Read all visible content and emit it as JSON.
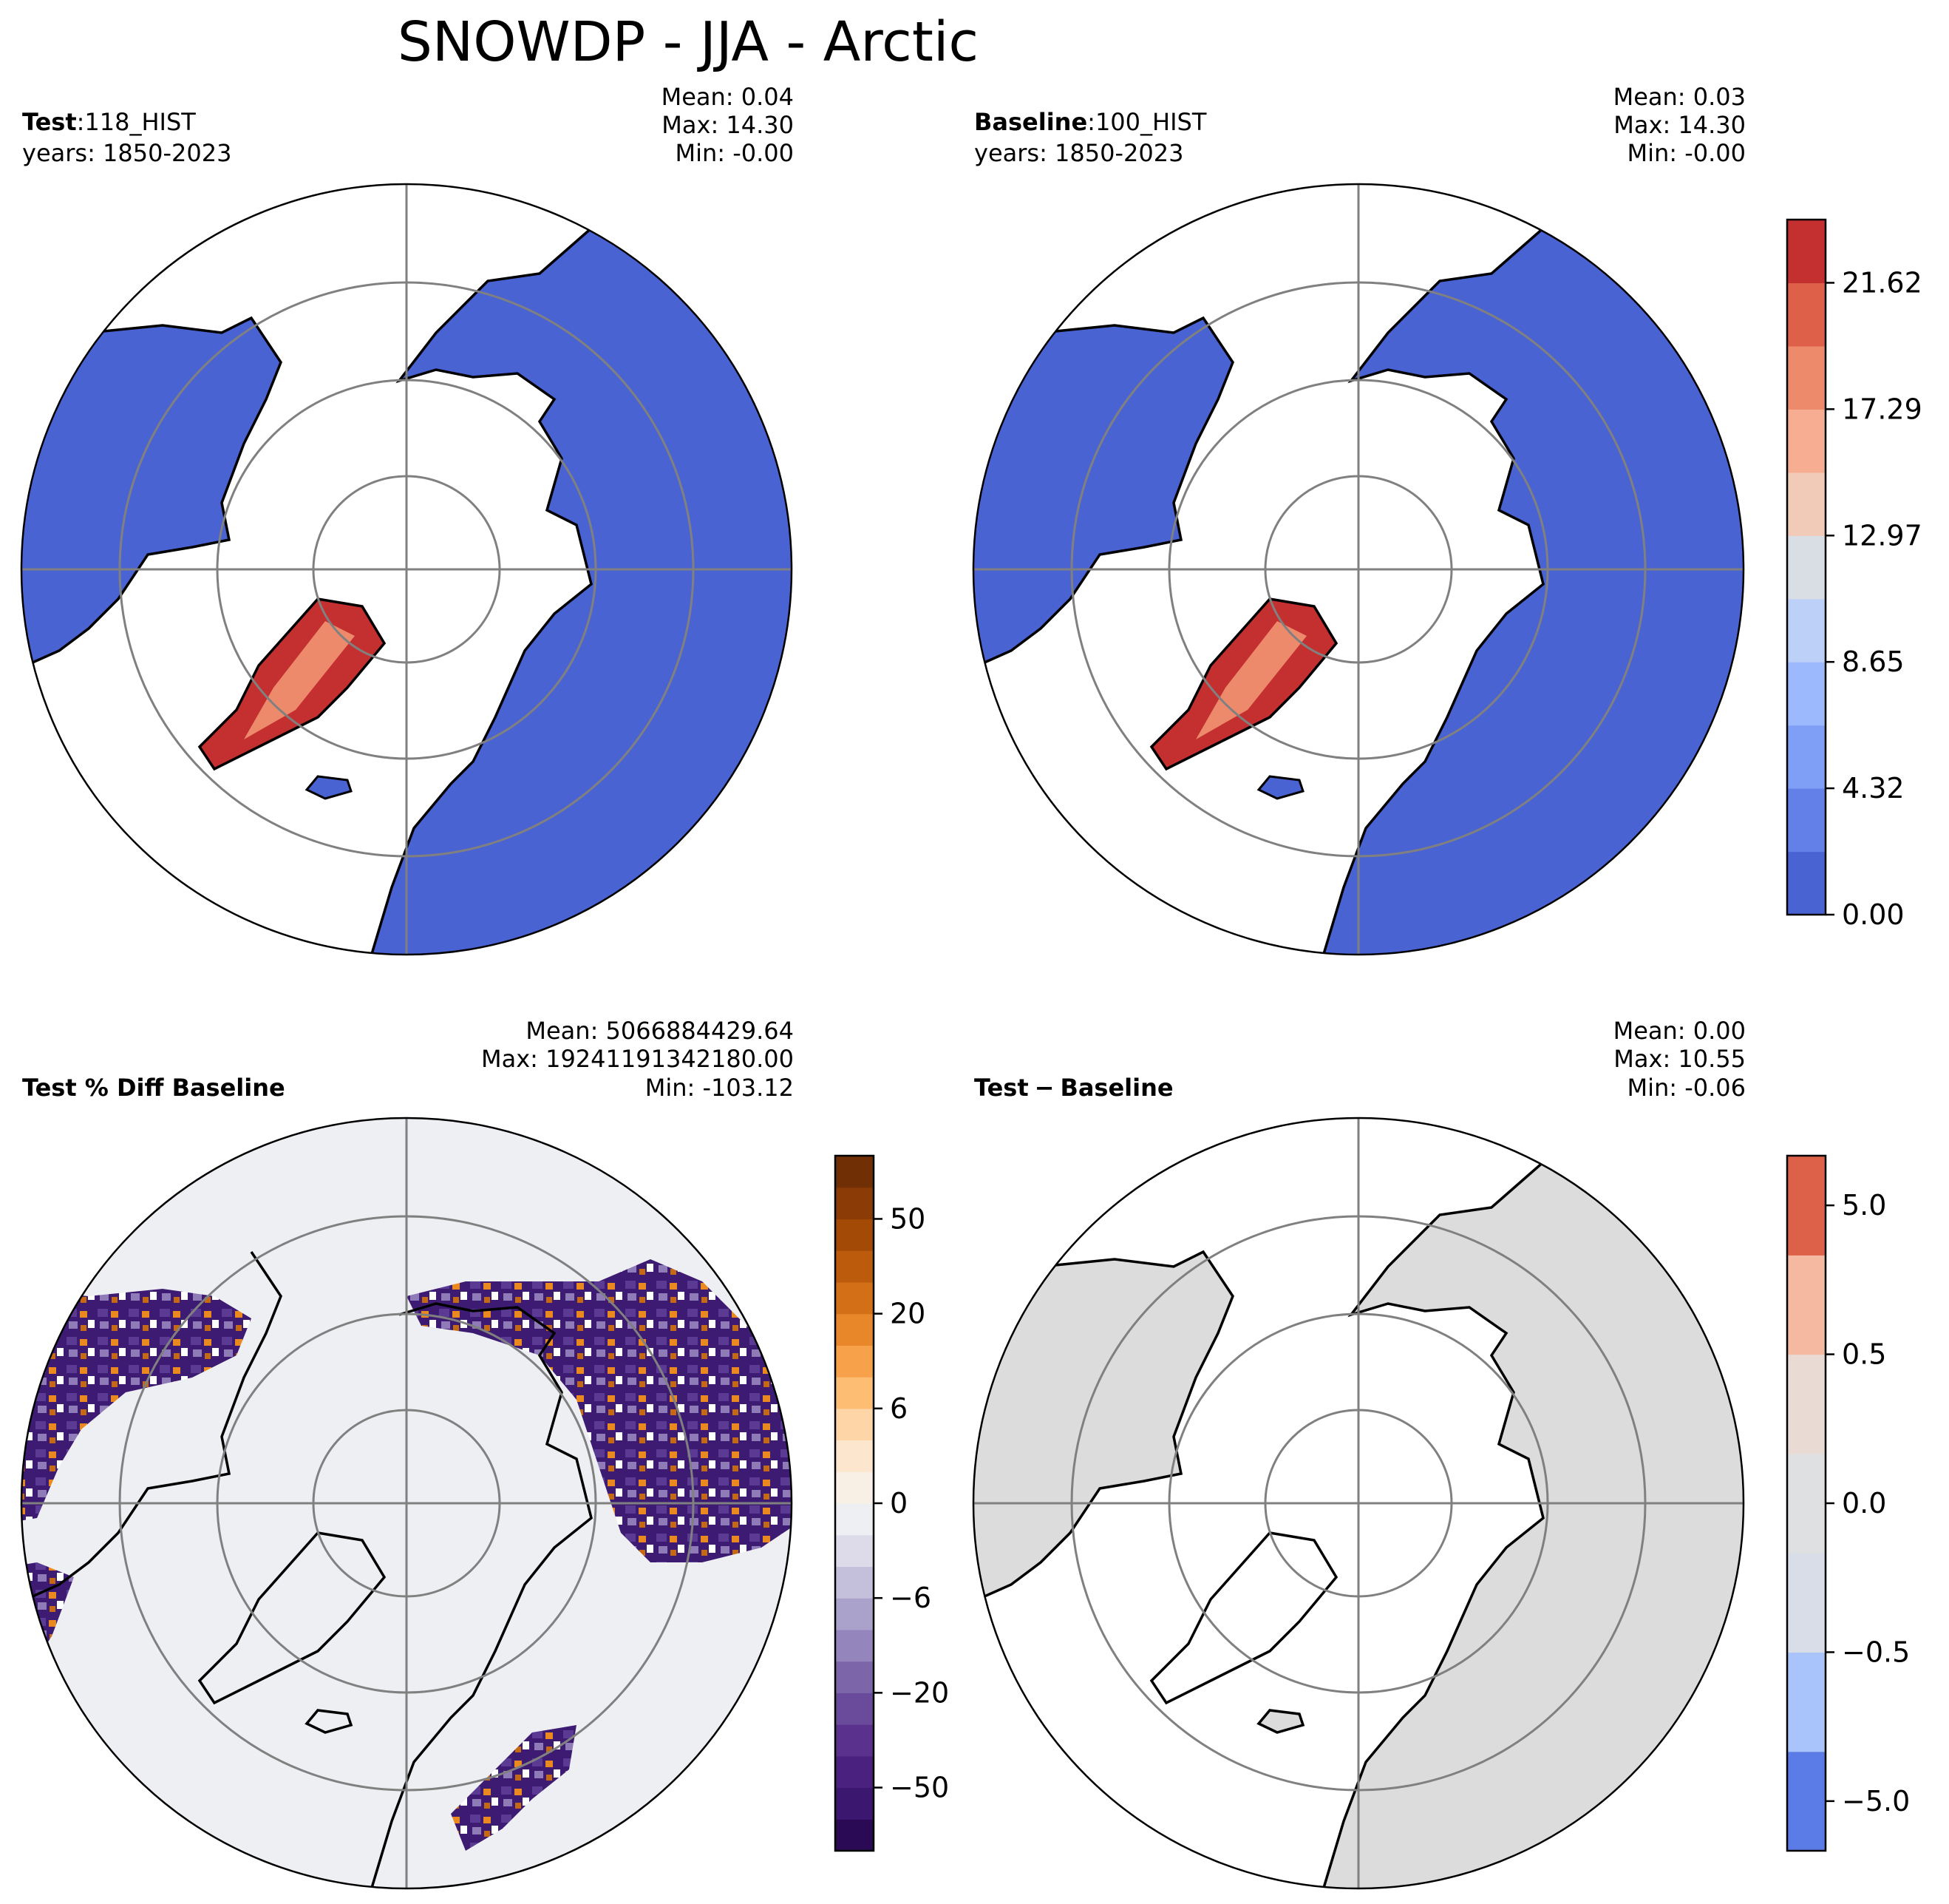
{
  "title": "SNOWDP - JJA - Arctic",
  "panels": {
    "test": {
      "label": "Test",
      "sep": ":",
      "case": "118_HIST",
      "years": "years: 1850-2023",
      "mean": "Mean:  0.04",
      "max": "Max: 14.30",
      "min": "Min: -0.00"
    },
    "baseline": {
      "label": "Baseline",
      "sep": ":",
      "case": "100_HIST",
      "years": "years: 1850-2023",
      "mean": "Mean:  0.03",
      "max": "Max: 14.30",
      "min": "Min: -0.00"
    },
    "pctdiff": {
      "label": "Test % Diff Baseline",
      "mean": "Mean: 5066884429.64",
      "max": "Max: 19241191342180.00",
      "min": "Min: -103.12"
    },
    "diff": {
      "label_a": "Test",
      "label_op": "−",
      "label_b": "Baseline",
      "mean": "Mean:  0.00",
      "max": "Max: 10.55",
      "min": "Min: -0.06"
    }
  },
  "colorbars": {
    "main": {
      "colors": [
        "#4a63d3",
        "#6280e8",
        "#7f9ef6",
        "#9db9fd",
        "#bdd0f8",
        "#d9dde4",
        "#f2cbb8",
        "#f6ad91",
        "#ee8a6c",
        "#de6049",
        "#c43030"
      ],
      "ticks": [
        "0.00",
        "4.32",
        "8.65",
        "12.97",
        "17.29",
        "21.62"
      ]
    },
    "pct": {
      "colors": [
        "#2a0a55",
        "#3b1770",
        "#4b2180",
        "#5a318d",
        "#6a4a9b",
        "#7c65a9",
        "#9485bc",
        "#aaa2cb",
        "#c4c0dc",
        "#dddbea",
        "#eeeff3",
        "#f9f0e5",
        "#fce6cd",
        "#fdd5a6",
        "#fdbd72",
        "#f7a24a",
        "#e8862a",
        "#d36f16",
        "#bc5b0c",
        "#a44a07",
        "#8b3b06",
        "#702f05"
      ],
      "ticks": [
        "−50",
        "−20",
        "−6",
        "0",
        "6",
        "20",
        "50"
      ]
    },
    "diff": {
      "colors": [
        "#5b7be6",
        "#a9c4fb",
        "#d8dde8",
        "#dfe0e1",
        "#e9dbd3",
        "#f4b9a0",
        "#dd6048"
      ],
      "ticks": [
        "−5.0",
        "−0.5",
        "0.0",
        "0.5",
        "5.0"
      ]
    }
  }
}
